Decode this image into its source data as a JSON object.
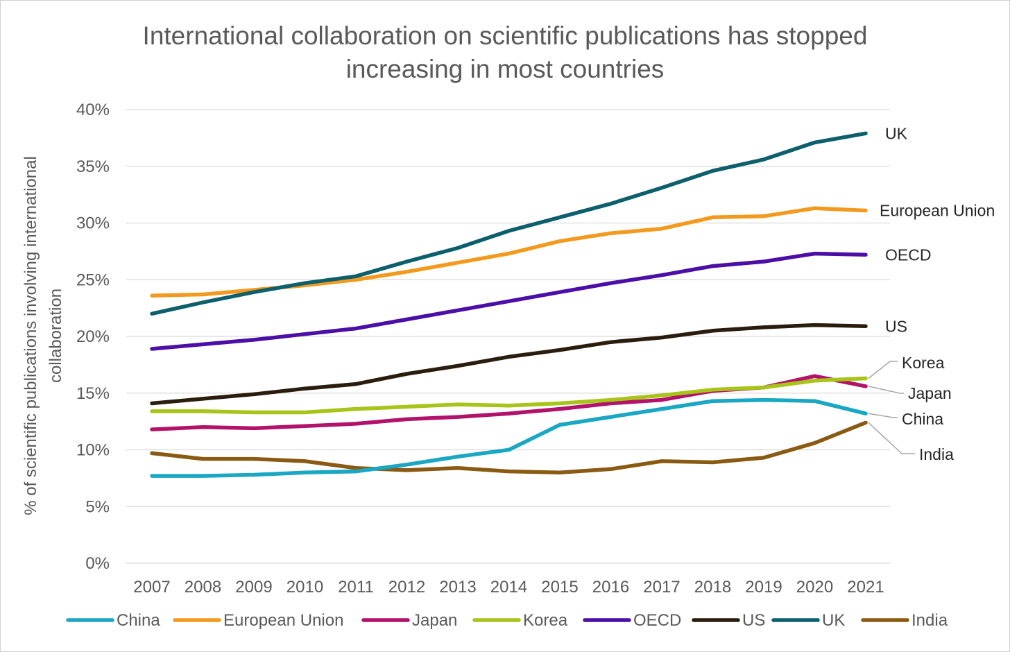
{
  "chart_data": {
    "type": "line",
    "title_lines": [
      "International collaboration on scientific publications has stopped",
      "increasing in most countries"
    ],
    "xlabel": "",
    "ylabel_lines": [
      "% of scientific publications involving international",
      "collaboration"
    ],
    "x": [
      "2007",
      "2008",
      "2009",
      "2010",
      "2011",
      "2012",
      "2013",
      "2014",
      "2015",
      "2016",
      "2017",
      "2018",
      "2019",
      "2020",
      "2021"
    ],
    "ylim": [
      0,
      40
    ],
    "y_ticks": [
      0,
      5,
      10,
      15,
      20,
      25,
      30,
      35,
      40
    ],
    "y_tick_labels": [
      "0%",
      "5%",
      "10%",
      "15%",
      "20%",
      "25%",
      "30%",
      "35%",
      "40%"
    ],
    "grid": true,
    "legend_position": "bottom",
    "series": [
      {
        "name": "China",
        "color": "#1aa7c4",
        "values": [
          7.7,
          7.7,
          7.8,
          8.0,
          8.1,
          8.7,
          9.4,
          10.0,
          12.2,
          12.9,
          13.6,
          14.3,
          14.4,
          14.3,
          13.2
        ]
      },
      {
        "name": "European Union",
        "color": "#f39a1e",
        "values": [
          23.6,
          23.7,
          24.1,
          24.5,
          25.0,
          25.7,
          26.5,
          27.3,
          28.4,
          29.1,
          29.5,
          30.5,
          30.6,
          31.3,
          31.1
        ]
      },
      {
        "name": "Japan",
        "color": "#b3126b",
        "values": [
          11.8,
          12.0,
          11.9,
          12.1,
          12.3,
          12.7,
          12.9,
          13.2,
          13.6,
          14.1,
          14.4,
          15.2,
          15.5,
          16.5,
          15.6
        ]
      },
      {
        "name": "Korea",
        "color": "#a8c418",
        "values": [
          13.4,
          13.4,
          13.3,
          13.3,
          13.6,
          13.8,
          14.0,
          13.9,
          14.1,
          14.4,
          14.8,
          15.3,
          15.5,
          16.1,
          16.3
        ]
      },
      {
        "name": "OECD",
        "color": "#4b0fa8",
        "values": [
          18.9,
          19.3,
          19.7,
          20.2,
          20.7,
          21.5,
          22.3,
          23.1,
          23.9,
          24.7,
          25.4,
          26.2,
          26.6,
          27.3,
          27.2
        ]
      },
      {
        "name": "US",
        "color": "#2b1d0e",
        "values": [
          14.1,
          14.5,
          14.9,
          15.4,
          15.8,
          16.7,
          17.4,
          18.2,
          18.8,
          19.5,
          19.9,
          20.5,
          20.8,
          21.0,
          20.9
        ]
      },
      {
        "name": "UK",
        "color": "#0c5f6b",
        "values": [
          22.0,
          23.0,
          23.9,
          24.7,
          25.3,
          26.6,
          27.8,
          29.3,
          30.5,
          31.7,
          33.1,
          34.6,
          35.6,
          37.1,
          37.9
        ]
      },
      {
        "name": "India",
        "color": "#8a5a12",
        "values": [
          9.7,
          9.2,
          9.2,
          9.0,
          8.4,
          8.2,
          8.4,
          8.1,
          8.0,
          8.3,
          9.0,
          8.9,
          9.3,
          10.6,
          12.4
        ]
      }
    ],
    "annotations": [
      "UK",
      "European Union",
      "OECD",
      "US",
      "Korea",
      "Japan",
      "China",
      "India"
    ]
  }
}
